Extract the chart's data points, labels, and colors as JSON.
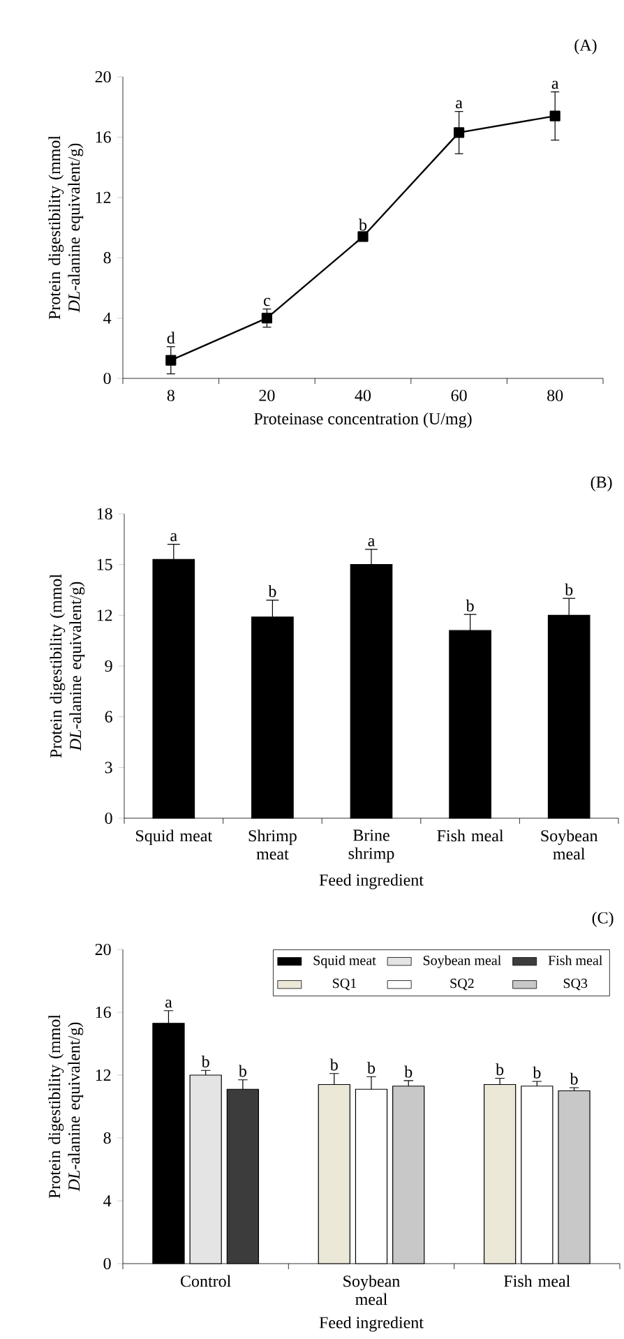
{
  "chart_data": [
    {
      "type": "line",
      "title": "(A)",
      "xlabel": "Proteinase concentration (U/mg)",
      "ylabel": "Protein digestibility (mmol *DL*-alanine equivalent/g)",
      "categories": [
        "8",
        "20",
        "40",
        "60",
        "80"
      ],
      "values": [
        1.2,
        4.0,
        9.4,
        16.3,
        17.4
      ],
      "errors": [
        0.9,
        0.6,
        0.2,
        1.4,
        1.6
      ],
      "value_labels": [
        "d",
        "c",
        "b",
        "a",
        "a"
      ],
      "color": "#000000",
      "marker": "square",
      "line_style": "solid",
      "ylim": [
        0,
        20
      ],
      "yticks": [
        0,
        4,
        8,
        12,
        16,
        20
      ],
      "legend": false
    },
    {
      "type": "bar",
      "title": "(B)",
      "xlabel": "Feed ingredient",
      "ylabel": "Protein digestibility (mmol *DL*-alanine equivalent/g)",
      "categories": [
        "Squid meat",
        "Shrimp meat",
        "Brine shrimp",
        "Fish meal",
        "Soybean meal"
      ],
      "values": [
        15.3,
        11.9,
        15.0,
        11.1,
        12.0
      ],
      "errors": [
        [
          15.3,
          16.2
        ],
        [
          11.9,
          12.9
        ],
        [
          15.0,
          15.9
        ],
        [
          11.1,
          12.05
        ],
        [
          12.0,
          13.0
        ]
      ],
      "value_labels": [
        "a",
        "b",
        "a",
        "b",
        "b"
      ],
      "color": "#000000",
      "ylim": [
        0,
        18
      ],
      "yticks": [
        0,
        3,
        6,
        9,
        12,
        15,
        18
      ],
      "legend": false
    },
    {
      "type": "bar",
      "title": "(C)",
      "xlabel": "Feed ingredient",
      "ylabel": "Protein digestibility (mmol *DL*-alanine equivalent/g)",
      "categories": [
        "Control",
        "Soybean meal",
        "Fish meal"
      ],
      "ylim": [
        0,
        20
      ],
      "yticks": [
        0,
        4,
        8,
        12,
        16,
        20
      ],
      "legend": "top right",
      "series": [
        {
          "name": "Squid meat",
          "color": "#000000",
          "values": [
            15.3,
            null,
            null
          ],
          "errors": [
            [
              15.3,
              16.1
            ],
            null,
            null
          ],
          "value_labels": [
            "a",
            null,
            null
          ]
        },
        {
          "name": "Soybean meal",
          "color": "#e4e4e4",
          "values": [
            12.0,
            null,
            null
          ],
          "errors": [
            [
              12.0,
              12.3
            ],
            null,
            null
          ],
          "value_labels": [
            "b",
            null,
            null
          ]
        },
        {
          "name": "Fish meal",
          "color": "#3c3c3c",
          "values": [
            11.1,
            null,
            null
          ],
          "errors": [
            [
              11.1,
              11.7
            ],
            null,
            null
          ],
          "value_labels": [
            "b",
            null,
            null
          ]
        },
        {
          "name": "SQ1",
          "color": "#ebe8d8",
          "values": [
            null,
            11.4,
            11.4
          ],
          "errors": [
            null,
            [
              11.4,
              12.1
            ],
            [
              11.4,
              11.8
            ]
          ],
          "value_labels": [
            null,
            "b",
            "b"
          ]
        },
        {
          "name": "SQ2",
          "color": "#ffffff",
          "values": [
            null,
            11.1,
            11.3
          ],
          "errors": [
            null,
            [
              11.1,
              11.9
            ],
            [
              11.3,
              11.6
            ]
          ],
          "value_labels": [
            null,
            "b",
            "b"
          ]
        },
        {
          "name": "SQ3",
          "color": "#c8c8c8",
          "values": [
            null,
            11.3,
            11.0
          ],
          "errors": [
            null,
            [
              11.3,
              11.65
            ],
            [
              11.0,
              11.2
            ]
          ],
          "value_labels": [
            null,
            "b",
            "b"
          ]
        }
      ]
    }
  ]
}
